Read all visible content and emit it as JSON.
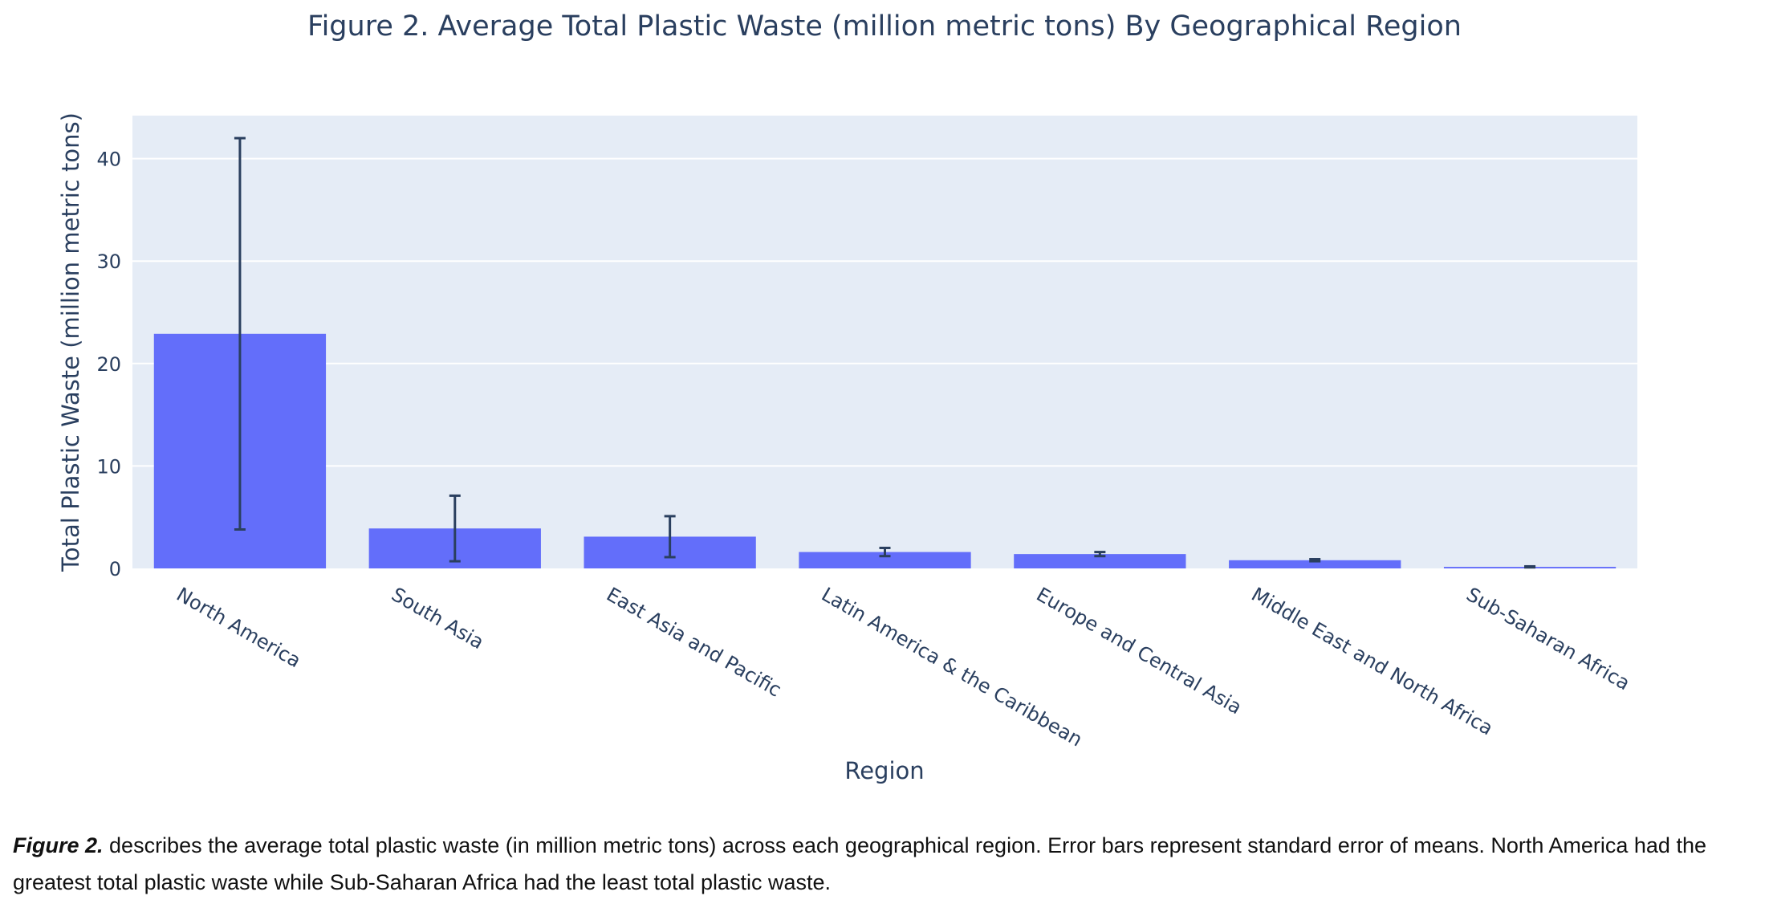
{
  "chart_data": {
    "type": "bar",
    "title": "Figure 2. Average Total Plastic Waste (million metric tons) By Geographical Region",
    "xlabel": "Region",
    "ylabel": "Total Plastic Waste (million metric tons)",
    "ylim": [
      0,
      44.2
    ],
    "yticks": [
      0,
      10,
      20,
      30,
      40
    ],
    "grid": true,
    "colors": {
      "bar": "#636efa",
      "plot_bg": "#e5ecf6",
      "grid": "#ffffff",
      "error_bar": "#2a3f5f",
      "text": "#2a3f5f"
    },
    "categories": [
      "North America",
      "South Asia",
      "East Asia and Pacific",
      "Latin America & the Caribbean",
      "Europe and Central Asia",
      "Middle East and North Africa",
      "Sub-Saharan Africa"
    ],
    "values": [
      22.9,
      3.9,
      3.1,
      1.6,
      1.4,
      0.8,
      0.15
    ],
    "error": [
      19.1,
      3.2,
      2.0,
      0.4,
      0.2,
      0.1,
      0.05
    ]
  },
  "caption": {
    "lead": "Figure 2.",
    "text": " describes the average total plastic waste (in million metric tons) across each geographical region. Error bars represent standard error of means. North America had the greatest total plastic waste while Sub-Saharan Africa had the least total plastic waste."
  }
}
